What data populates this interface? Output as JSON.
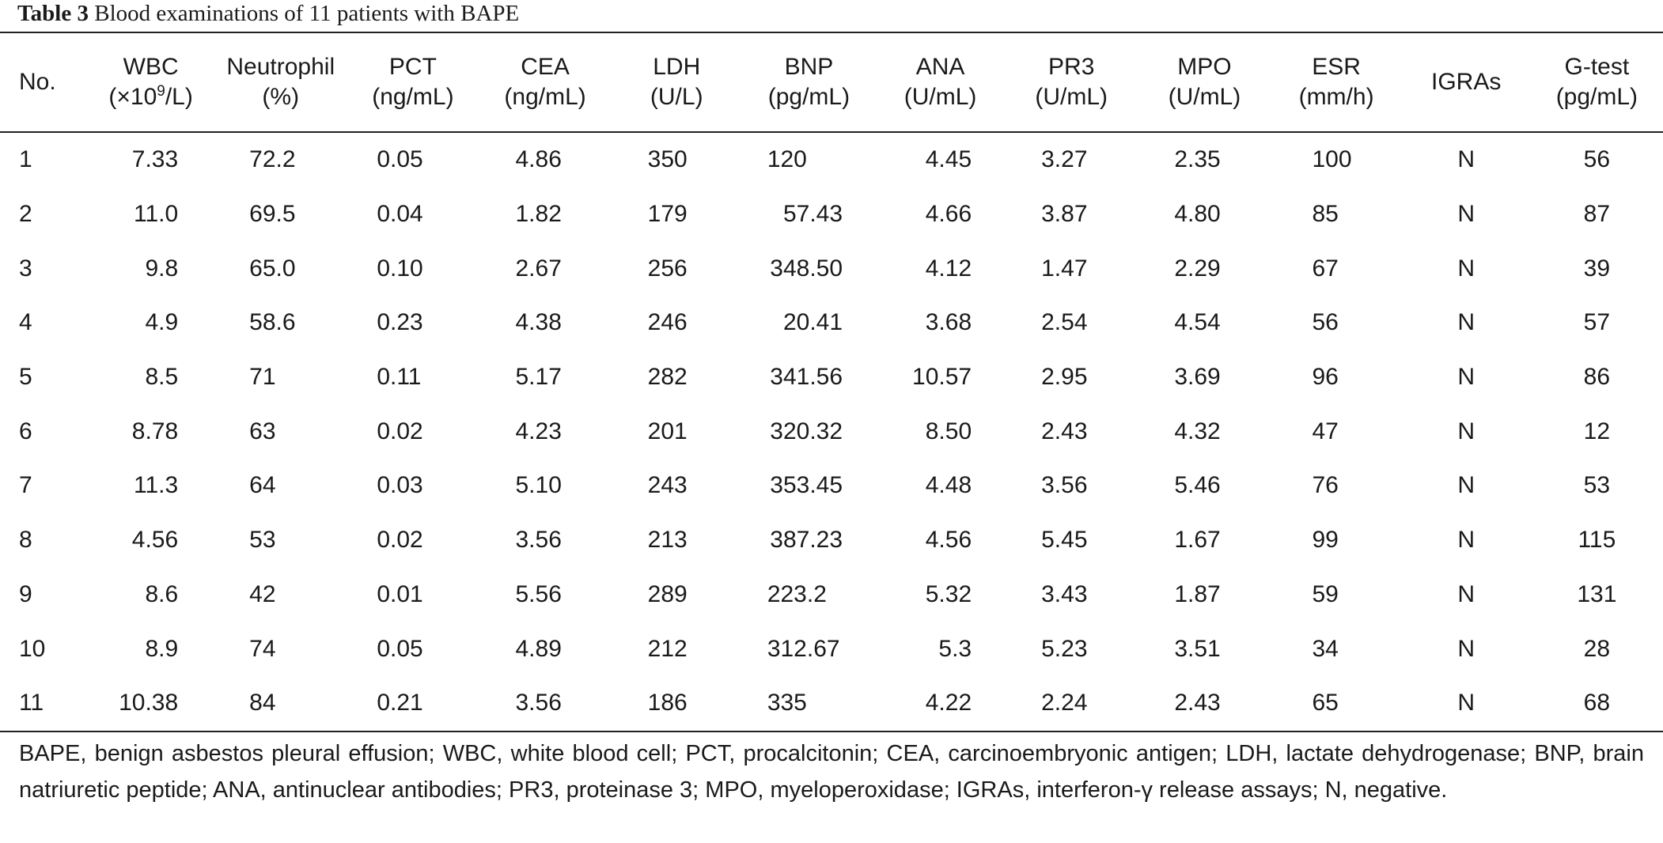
{
  "caption": {
    "label": "Table 3",
    "text": "Blood examinations of 11 patients with BAPE"
  },
  "columns": [
    {
      "name": "No.",
      "unit": ""
    },
    {
      "name": "WBC",
      "unit_pre": "(×10",
      "unit_sup": "9",
      "unit_post": "/L)"
    },
    {
      "name": "Neutrophil",
      "unit": "(%)"
    },
    {
      "name": "PCT",
      "unit": "(ng/mL)"
    },
    {
      "name": "CEA",
      "unit": "(ng/mL)"
    },
    {
      "name": "LDH",
      "unit": "(U/L)"
    },
    {
      "name": "BNP",
      "unit": "(pg/mL)"
    },
    {
      "name": "ANA",
      "unit": "(U/mL)"
    },
    {
      "name": "PR3",
      "unit": "(U/mL)"
    },
    {
      "name": "MPO",
      "unit": "(U/mL)"
    },
    {
      "name": "ESR",
      "unit": "(mm/h)"
    },
    {
      "name": "IGRAs",
      "unit": ""
    },
    {
      "name": "G-test",
      "unit": "(pg/mL)"
    }
  ],
  "rows": [
    [
      "1",
      "7.33",
      "72.2",
      "0.05",
      "4.86",
      "350",
      "120",
      "4.45",
      "3.27",
      "2.35",
      "100",
      "N",
      "56"
    ],
    [
      "2",
      "11.0",
      "69.5",
      "0.04",
      "1.82",
      "179",
      "57.43",
      "4.66",
      "3.87",
      "4.80",
      "85",
      "N",
      "87"
    ],
    [
      "3",
      "9.8",
      "65.0",
      "0.10",
      "2.67",
      "256",
      "348.50",
      "4.12",
      "1.47",
      "2.29",
      "67",
      "N",
      "39"
    ],
    [
      "4",
      "4.9",
      "58.6",
      "0.23",
      "4.38",
      "246",
      "20.41",
      "3.68",
      "2.54",
      "4.54",
      "56",
      "N",
      "57"
    ],
    [
      "5",
      "8.5",
      "71",
      "0.11",
      "5.17",
      "282",
      "341.56",
      "10.57",
      "2.95",
      "3.69",
      "96",
      "N",
      "86"
    ],
    [
      "6",
      "8.78",
      "63",
      "0.02",
      "4.23",
      "201",
      "320.32",
      "8.50",
      "2.43",
      "4.32",
      "47",
      "N",
      "12"
    ],
    [
      "7",
      "11.3",
      "64",
      "0.03",
      "5.10",
      "243",
      "353.45",
      "4.48",
      "3.56",
      "5.46",
      "76",
      "N",
      "53"
    ],
    [
      "8",
      "4.56",
      "53",
      "0.02",
      "3.56",
      "213",
      "387.23",
      "4.56",
      "5.45",
      "1.67",
      "99",
      "N",
      "115"
    ],
    [
      "9",
      "8.6",
      "42",
      "0.01",
      "5.56",
      "289",
      "223.2",
      "5.32",
      "3.43",
      "1.87",
      "59",
      "N",
      "131"
    ],
    [
      "10",
      "8.9",
      "74",
      "0.05",
      "4.89",
      "212",
      "312.67",
      "5.3",
      "5.23",
      "3.51",
      "34",
      "N",
      "28"
    ],
    [
      "11",
      "10.38",
      "84",
      "0.21",
      "3.56",
      "186",
      "335",
      "4.22",
      "2.24",
      "2.43",
      "65",
      "N",
      "68"
    ]
  ],
  "footnote": "BAPE, benign asbestos pleural effusion; WBC, white blood cell; PCT, procalcitonin; CEA, carcinoembryonic antigen; LDH, lactate dehydrogenase; BNP, brain natriuretic peptide; ANA, antinuclear antibodies; PR3, proteinase 3; MPO, myeloperoxidase; IGRAs, interferon-γ release assays; N, negative."
}
